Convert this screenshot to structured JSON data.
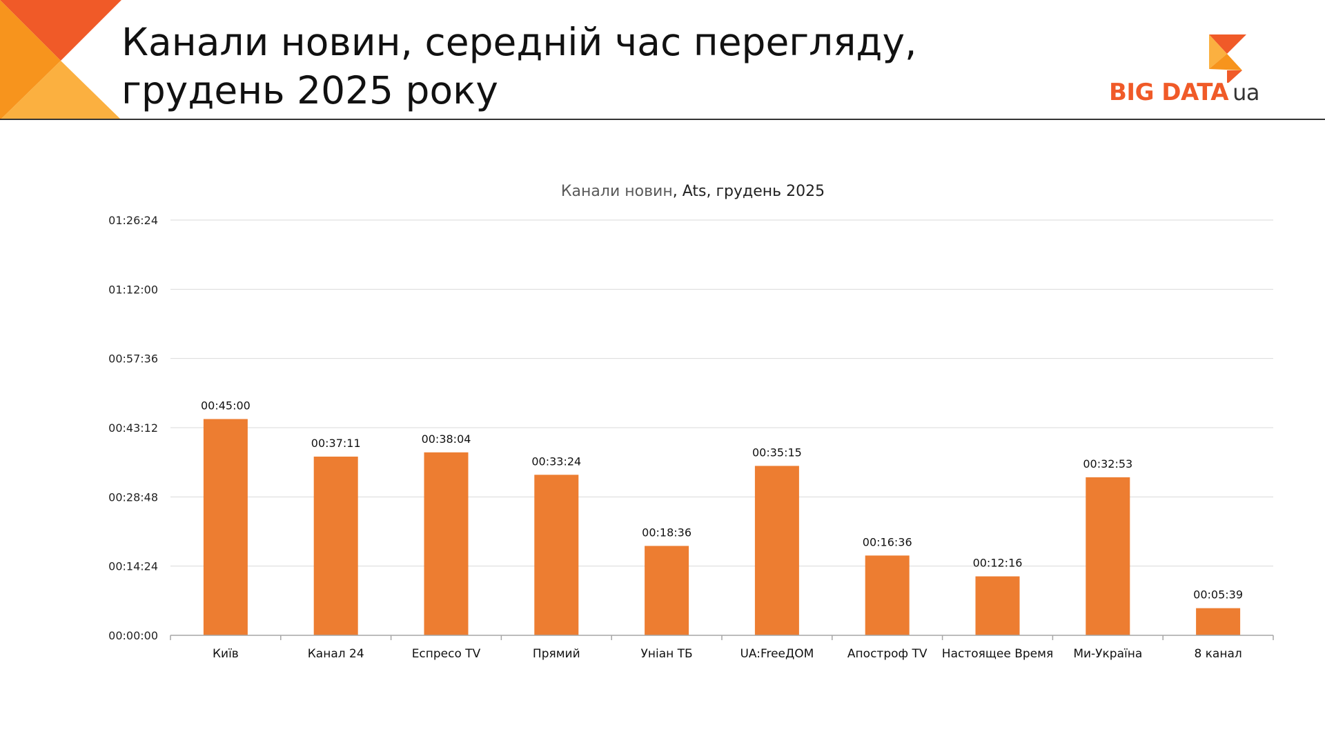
{
  "header": {
    "title_line1": "Канали новин, середній час перегляду,",
    "title_line2": "грудень 2025 року"
  },
  "logo": {
    "text_main": "BIG DATA",
    "text_suffix": "ua"
  },
  "colors": {
    "bar": "#ed7d31",
    "accent": "#f05a28",
    "deco_light": "#fbb040",
    "deco_mid": "#f7941d",
    "deco_dark": "#f05a28"
  },
  "chart_data": {
    "type": "bar",
    "title_part1": "Канали новин",
    "title_part2": ", Ats, грудень 2025",
    "categories": [
      "Київ",
      "Канал 24",
      "Еспресо TV",
      "Прямий",
      "Уніан ТБ",
      "UA:FreeДОМ",
      "Апостроф TV",
      "Настоящее Время",
      "Ми-Україна",
      "8 канал"
    ],
    "values": [
      "00:45:00",
      "00:37:11",
      "00:38:04",
      "00:33:24",
      "00:18:36",
      "00:35:15",
      "00:16:36",
      "00:12:16",
      "00:32:53",
      "00:05:39"
    ],
    "yticks": [
      "00:00:00",
      "00:14:24",
      "00:28:48",
      "00:43:12",
      "00:57:36",
      "01:12:00",
      "01:26:24"
    ],
    "ylim": [
      "00:00:00",
      "01:26:24"
    ],
    "grid": true,
    "legend": "none"
  }
}
